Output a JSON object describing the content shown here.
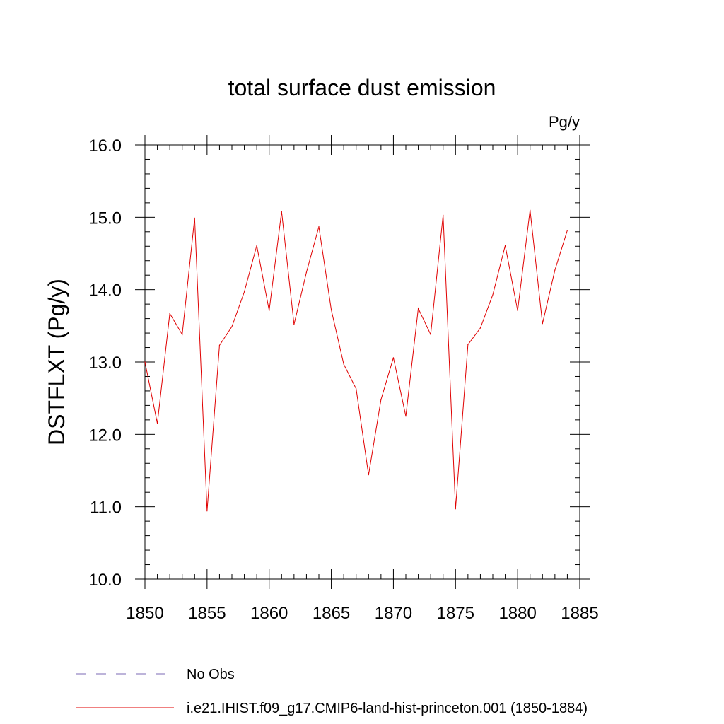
{
  "chart_data": {
    "type": "line",
    "title": "total surface dust emission",
    "units_label": "Pg/y",
    "ylabel": "DSTFLXT  (Pg/y)",
    "xlabel": "",
    "xlim": [
      1850,
      1885
    ],
    "ylim": [
      10.0,
      16.0
    ],
    "x_ticks": [
      "1850",
      "1855",
      "1860",
      "1865",
      "1870",
      "1875",
      "1880",
      "1885"
    ],
    "y_ticks": [
      "10.0",
      "11.0",
      "12.0",
      "13.0",
      "14.0",
      "15.0",
      "16.0"
    ],
    "grid": false,
    "colors": {
      "model": "#e00000",
      "obs": "#7b68b5"
    },
    "x": [
      1850,
      1851,
      1852,
      1853,
      1854,
      1855,
      1856,
      1857,
      1858,
      1859,
      1860,
      1861,
      1862,
      1863,
      1864,
      1865,
      1866,
      1867,
      1868,
      1869,
      1870,
      1871,
      1872,
      1873,
      1874,
      1875,
      1876,
      1877,
      1878,
      1879,
      1880,
      1881,
      1882,
      1883,
      1884
    ],
    "series": [
      {
        "name": "i.e21.IHIST.f09_g17.CMIP6-land-hist-princeton.001 (1850-1884)",
        "values": [
          13.0,
          12.15,
          13.67,
          13.38,
          14.99,
          10.94,
          13.23,
          13.49,
          13.97,
          14.61,
          13.71,
          15.08,
          13.52,
          14.24,
          14.87,
          13.72,
          12.97,
          12.63,
          11.44,
          12.48,
          13.06,
          12.25,
          13.74,
          13.38,
          15.03,
          10.97,
          13.24,
          13.47,
          13.93,
          14.61,
          13.71,
          15.1,
          13.53,
          14.27,
          14.82
        ]
      }
    ],
    "legend": {
      "placement": "bottom-left",
      "entries": [
        {
          "label": "No Obs",
          "style": "dashed"
        },
        {
          "label": "i.e21.IHIST.f09_g17.CMIP6-land-hist-princeton.001 (1850-1884)",
          "style": "solid"
        }
      ]
    }
  }
}
